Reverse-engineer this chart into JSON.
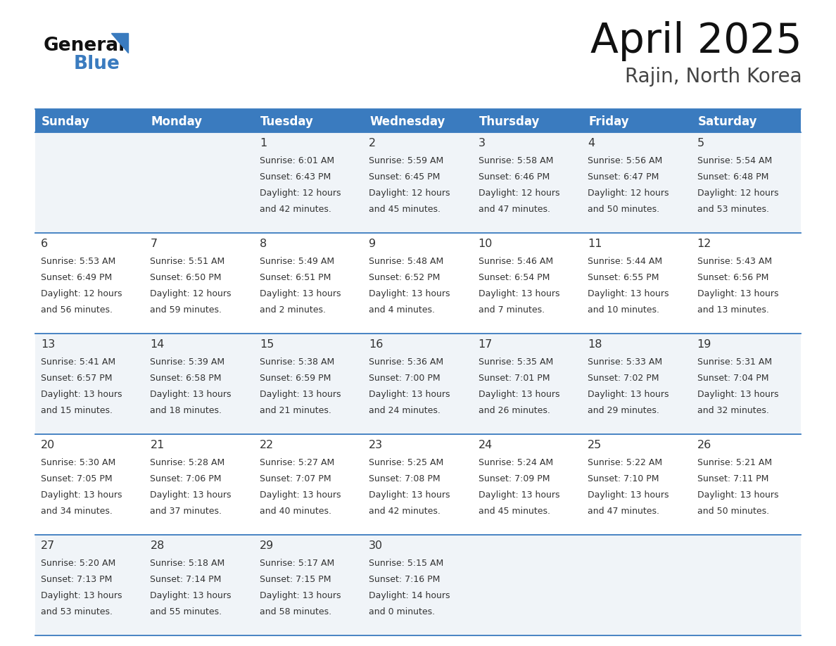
{
  "title": "April 2025",
  "subtitle": "Rajin, North Korea",
  "header_bg_color": "#3a7bbf",
  "header_text_color": "#ffffff",
  "bg_color": "#ffffff",
  "cell_bg_alt": "#f0f4f8",
  "day_headers": [
    "Sunday",
    "Monday",
    "Tuesday",
    "Wednesday",
    "Thursday",
    "Friday",
    "Saturday"
  ],
  "text_color": "#333333",
  "line_color": "#3a7bbf",
  "weeks": [
    [
      {
        "day": "",
        "sunrise": "",
        "sunset": "",
        "daylight": ""
      },
      {
        "day": "",
        "sunrise": "",
        "sunset": "",
        "daylight": ""
      },
      {
        "day": "1",
        "sunrise": "Sunrise: 6:01 AM",
        "sunset": "Sunset: 6:43 PM",
        "daylight": "Daylight: 12 hours\nand 42 minutes."
      },
      {
        "day": "2",
        "sunrise": "Sunrise: 5:59 AM",
        "sunset": "Sunset: 6:45 PM",
        "daylight": "Daylight: 12 hours\nand 45 minutes."
      },
      {
        "day": "3",
        "sunrise": "Sunrise: 5:58 AM",
        "sunset": "Sunset: 6:46 PM",
        "daylight": "Daylight: 12 hours\nand 47 minutes."
      },
      {
        "day": "4",
        "sunrise": "Sunrise: 5:56 AM",
        "sunset": "Sunset: 6:47 PM",
        "daylight": "Daylight: 12 hours\nand 50 minutes."
      },
      {
        "day": "5",
        "sunrise": "Sunrise: 5:54 AM",
        "sunset": "Sunset: 6:48 PM",
        "daylight": "Daylight: 12 hours\nand 53 minutes."
      }
    ],
    [
      {
        "day": "6",
        "sunrise": "Sunrise: 5:53 AM",
        "sunset": "Sunset: 6:49 PM",
        "daylight": "Daylight: 12 hours\nand 56 minutes."
      },
      {
        "day": "7",
        "sunrise": "Sunrise: 5:51 AM",
        "sunset": "Sunset: 6:50 PM",
        "daylight": "Daylight: 12 hours\nand 59 minutes."
      },
      {
        "day": "8",
        "sunrise": "Sunrise: 5:49 AM",
        "sunset": "Sunset: 6:51 PM",
        "daylight": "Daylight: 13 hours\nand 2 minutes."
      },
      {
        "day": "9",
        "sunrise": "Sunrise: 5:48 AM",
        "sunset": "Sunset: 6:52 PM",
        "daylight": "Daylight: 13 hours\nand 4 minutes."
      },
      {
        "day": "10",
        "sunrise": "Sunrise: 5:46 AM",
        "sunset": "Sunset: 6:54 PM",
        "daylight": "Daylight: 13 hours\nand 7 minutes."
      },
      {
        "day": "11",
        "sunrise": "Sunrise: 5:44 AM",
        "sunset": "Sunset: 6:55 PM",
        "daylight": "Daylight: 13 hours\nand 10 minutes."
      },
      {
        "day": "12",
        "sunrise": "Sunrise: 5:43 AM",
        "sunset": "Sunset: 6:56 PM",
        "daylight": "Daylight: 13 hours\nand 13 minutes."
      }
    ],
    [
      {
        "day": "13",
        "sunrise": "Sunrise: 5:41 AM",
        "sunset": "Sunset: 6:57 PM",
        "daylight": "Daylight: 13 hours\nand 15 minutes."
      },
      {
        "day": "14",
        "sunrise": "Sunrise: 5:39 AM",
        "sunset": "Sunset: 6:58 PM",
        "daylight": "Daylight: 13 hours\nand 18 minutes."
      },
      {
        "day": "15",
        "sunrise": "Sunrise: 5:38 AM",
        "sunset": "Sunset: 6:59 PM",
        "daylight": "Daylight: 13 hours\nand 21 minutes."
      },
      {
        "day": "16",
        "sunrise": "Sunrise: 5:36 AM",
        "sunset": "Sunset: 7:00 PM",
        "daylight": "Daylight: 13 hours\nand 24 minutes."
      },
      {
        "day": "17",
        "sunrise": "Sunrise: 5:35 AM",
        "sunset": "Sunset: 7:01 PM",
        "daylight": "Daylight: 13 hours\nand 26 minutes."
      },
      {
        "day": "18",
        "sunrise": "Sunrise: 5:33 AM",
        "sunset": "Sunset: 7:02 PM",
        "daylight": "Daylight: 13 hours\nand 29 minutes."
      },
      {
        "day": "19",
        "sunrise": "Sunrise: 5:31 AM",
        "sunset": "Sunset: 7:04 PM",
        "daylight": "Daylight: 13 hours\nand 32 minutes."
      }
    ],
    [
      {
        "day": "20",
        "sunrise": "Sunrise: 5:30 AM",
        "sunset": "Sunset: 7:05 PM",
        "daylight": "Daylight: 13 hours\nand 34 minutes."
      },
      {
        "day": "21",
        "sunrise": "Sunrise: 5:28 AM",
        "sunset": "Sunset: 7:06 PM",
        "daylight": "Daylight: 13 hours\nand 37 minutes."
      },
      {
        "day": "22",
        "sunrise": "Sunrise: 5:27 AM",
        "sunset": "Sunset: 7:07 PM",
        "daylight": "Daylight: 13 hours\nand 40 minutes."
      },
      {
        "day": "23",
        "sunrise": "Sunrise: 5:25 AM",
        "sunset": "Sunset: 7:08 PM",
        "daylight": "Daylight: 13 hours\nand 42 minutes."
      },
      {
        "day": "24",
        "sunrise": "Sunrise: 5:24 AM",
        "sunset": "Sunset: 7:09 PM",
        "daylight": "Daylight: 13 hours\nand 45 minutes."
      },
      {
        "day": "25",
        "sunrise": "Sunrise: 5:22 AM",
        "sunset": "Sunset: 7:10 PM",
        "daylight": "Daylight: 13 hours\nand 47 minutes."
      },
      {
        "day": "26",
        "sunrise": "Sunrise: 5:21 AM",
        "sunset": "Sunset: 7:11 PM",
        "daylight": "Daylight: 13 hours\nand 50 minutes."
      }
    ],
    [
      {
        "day": "27",
        "sunrise": "Sunrise: 5:20 AM",
        "sunset": "Sunset: 7:13 PM",
        "daylight": "Daylight: 13 hours\nand 53 minutes."
      },
      {
        "day": "28",
        "sunrise": "Sunrise: 5:18 AM",
        "sunset": "Sunset: 7:14 PM",
        "daylight": "Daylight: 13 hours\nand 55 minutes."
      },
      {
        "day": "29",
        "sunrise": "Sunrise: 5:17 AM",
        "sunset": "Sunset: 7:15 PM",
        "daylight": "Daylight: 13 hours\nand 58 minutes."
      },
      {
        "day": "30",
        "sunrise": "Sunrise: 5:15 AM",
        "sunset": "Sunset: 7:16 PM",
        "daylight": "Daylight: 14 hours\nand 0 minutes."
      },
      {
        "day": "",
        "sunrise": "",
        "sunset": "",
        "daylight": ""
      },
      {
        "day": "",
        "sunrise": "",
        "sunset": "",
        "daylight": ""
      },
      {
        "day": "",
        "sunrise": "",
        "sunset": "",
        "daylight": ""
      }
    ]
  ],
  "logo_general_color": "#111111",
  "logo_blue_color": "#3a7bbf",
  "title_color": "#111111",
  "subtitle_color": "#444444"
}
